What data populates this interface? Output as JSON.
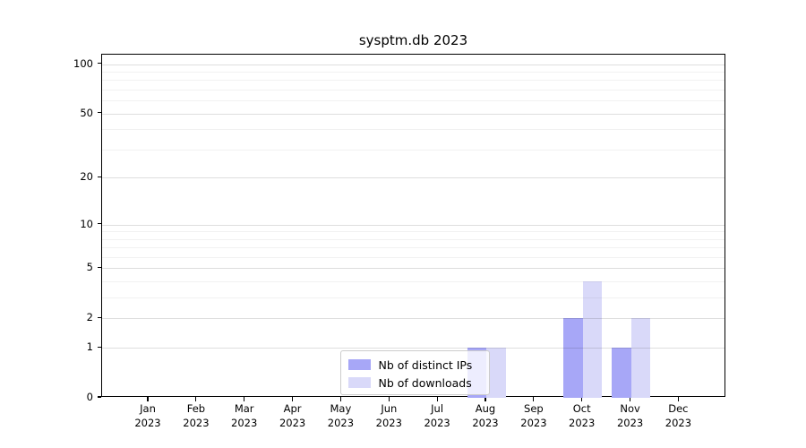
{
  "chart_data": {
    "type": "bar",
    "title": "sysptm.db 2023",
    "x_tick_months": [
      "Jan",
      "Feb",
      "Mar",
      "Apr",
      "May",
      "Jun",
      "Jul",
      "Aug",
      "Sep",
      "Oct",
      "Nov",
      "Dec"
    ],
    "x_tick_year": "2023",
    "categories": [
      "Jan 2023",
      "Feb 2023",
      "Mar 2023",
      "Apr 2023",
      "May 2023",
      "Jun 2023",
      "Jul 2023",
      "Aug 2023",
      "Sep 2023",
      "Oct 2023",
      "Nov 2023",
      "Dec 2023"
    ],
    "series": [
      {
        "name": "Nb of distinct IPs",
        "color": "#a7a7f7",
        "values": [
          0,
          0,
          0,
          0,
          0,
          0,
          0,
          1,
          0,
          2,
          1,
          0
        ]
      },
      {
        "name": "Nb of downloads",
        "color": "#d9d9f9",
        "values": [
          0,
          0,
          0,
          0,
          0,
          0,
          0,
          1,
          0,
          4,
          2,
          0
        ]
      }
    ],
    "xlabel": "",
    "ylabel": "",
    "y_axis": {
      "scale": "log1p",
      "ticks": [
        0,
        1,
        2,
        5,
        10,
        20,
        50,
        100
      ],
      "minor_gridlines": [
        3,
        4,
        6,
        7,
        8,
        9,
        30,
        40,
        60,
        70,
        80,
        90
      ],
      "ylim": [
        0,
        115
      ]
    },
    "grid": true,
    "legend": {
      "position": "lower-center-inside",
      "background": "rgba(255,255,255,0.8)",
      "border_color": "#cccccc"
    },
    "colors": {
      "axis": "#000000",
      "grid_major": "rgba(0,0,0,0.13)",
      "grid_minor": "rgba(0,0,0,0.055)"
    }
  }
}
